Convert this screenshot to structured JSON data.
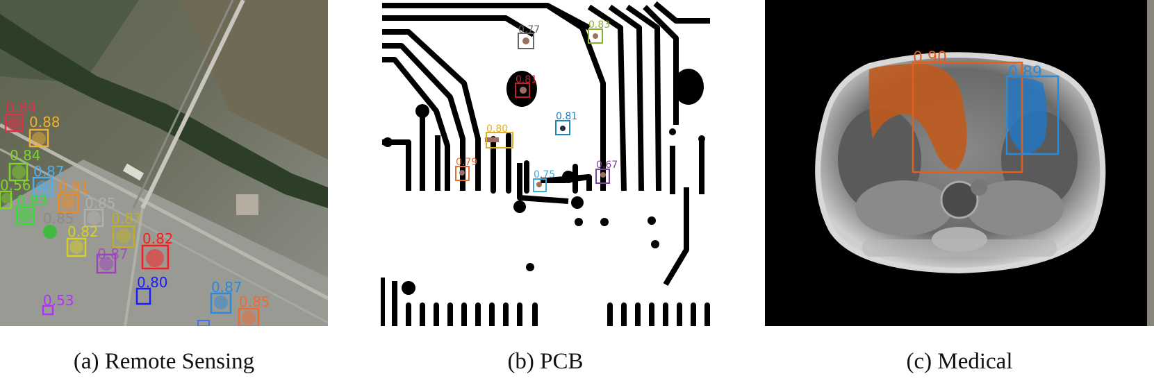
{
  "captions": {
    "a": "(a) Remote Sensing",
    "b": "(b) PCB",
    "c": "(c) Medical"
  },
  "panels": {
    "remote_sensing": {
      "detections": [
        {
          "score": "0.84",
          "color": "#e0304a"
        },
        {
          "score": "0.88",
          "color": "#f0b030"
        },
        {
          "score": "0.84",
          "color": "#7ed62a"
        },
        {
          "score": "0.87",
          "color": "#4ab0f0"
        },
        {
          "score": "0.81",
          "color": "#f08a20"
        },
        {
          "score": "0.56",
          "color": "#7ed62a"
        },
        {
          "score": "0.83",
          "color": "#30e030"
        },
        {
          "score": "0.85",
          "color": "#b0b0b0"
        },
        {
          "score": "0.85",
          "color": "#8a8a8a"
        },
        {
          "score": "0.87",
          "color": "#c0b020"
        },
        {
          "score": "0.82",
          "color": "#d8d020"
        },
        {
          "score": "0.87",
          "color": "#a040c0"
        },
        {
          "score": "0.82",
          "color": "#ff1a1a"
        },
        {
          "score": "0.80",
          "color": "#1a1aff"
        },
        {
          "score": "0.53",
          "color": "#b030ff"
        },
        {
          "score": "0.87",
          "color": "#2a8ad8"
        },
        {
          "score": "0.85",
          "color": "#f06a30"
        }
      ]
    },
    "pcb": {
      "detections": [
        {
          "score": "0.77",
          "color": "#666666"
        },
        {
          "score": "0.83",
          "color": "#8ab030"
        },
        {
          "score": "0.81",
          "color": "#c02030"
        },
        {
          "score": "0.81",
          "color": "#2080c0"
        },
        {
          "score": "0.80",
          "color": "#e0b020"
        },
        {
          "score": "0.79",
          "color": "#e07030"
        },
        {
          "score": "0.75",
          "color": "#40a8e0"
        },
        {
          "score": "0.67",
          "color": "#8040a0"
        }
      ]
    },
    "medical": {
      "detections": [
        {
          "score": "0.90",
          "color": "#e06020"
        },
        {
          "score": "0.89",
          "color": "#2a8ad8"
        }
      ]
    }
  }
}
